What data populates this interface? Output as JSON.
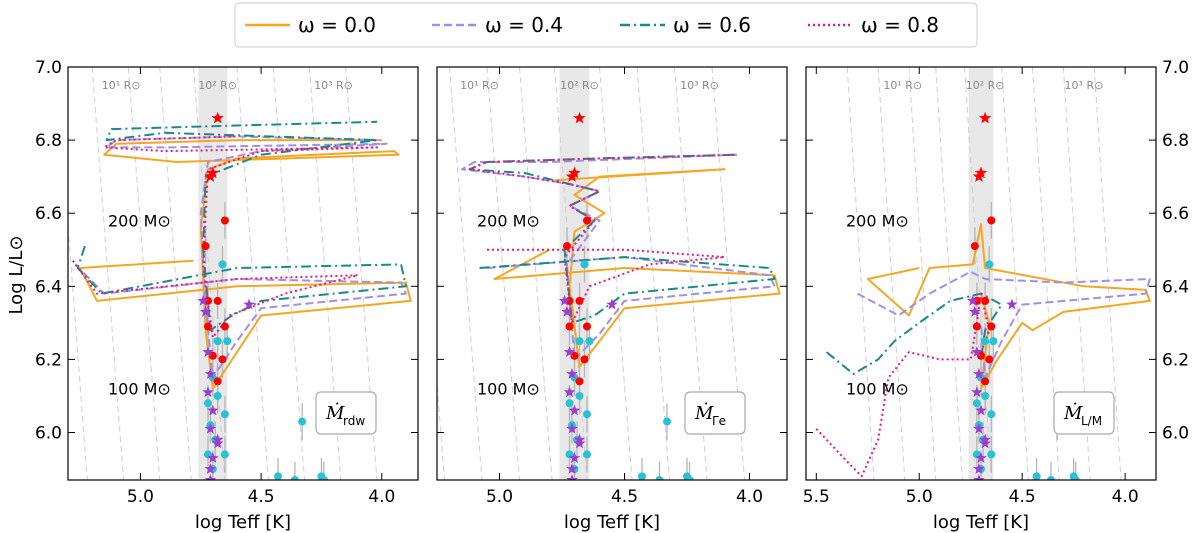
{
  "legend": {
    "items": [
      {
        "label": "ω = 0.0",
        "color": "#f5a623",
        "dash": "solid"
      },
      {
        "label": "ω = 0.4",
        "color": "#9f8fe8",
        "dash": "dashed"
      },
      {
        "label": "ω = 0.6",
        "color": "#1a8a85",
        "dash": "dashdot"
      },
      {
        "label": "ω = 0.8",
        "color": "#e8197c",
        "dash": "dotted"
      }
    ]
  },
  "axes": {
    "ylabel": "Log L/L⊙",
    "xlabel": "log Teff [K]",
    "y_ticks": [
      "6.0",
      "6.2",
      "6.4",
      "6.6",
      "6.8",
      "7.0"
    ],
    "mass_labels": [
      "200 M⊙",
      "100 M⊙"
    ],
    "radius_labels": [
      "10¹ R⊙",
      "10² R⊙",
      "10³ R⊙"
    ]
  },
  "colors": {
    "obs_red": "#ff0000",
    "obs_cyan": "#27c2d4",
    "obs_purple": "#9b3fd1",
    "grey_band": "#e8e8e8"
  },
  "chart_data": [
    {
      "type": "line",
      "panel": "Ṁ rdw",
      "badge": {
        "main": "Ṁ",
        "sub": "rdw"
      },
      "xlim": [
        5.3,
        3.85
      ],
      "ylim": [
        5.87,
        7.0
      ],
      "x_ticks": [
        "5.0",
        "4.5",
        "4.0"
      ],
      "series": [
        {
          "name": "ω = 0.0",
          "points": [
            [
              4.78,
              6.47
            ],
            [
              5.25,
              6.45
            ],
            [
              5.18,
              6.36
            ],
            [
              4.6,
              6.4
            ],
            [
              3.9,
              6.41
            ],
            [
              3.88,
              6.36
            ],
            [
              4.5,
              6.32
            ],
            [
              4.6,
              6.22
            ],
            [
              4.7,
              6.12
            ],
            [
              4.73,
              6.28
            ],
            [
              4.75,
              6.56
            ],
            [
              4.72,
              6.72
            ],
            [
              4.6,
              6.75
            ],
            [
              3.95,
              6.77
            ],
            [
              3.93,
              6.76
            ],
            [
              4.85,
              6.74
            ],
            [
              5.15,
              6.76
            ],
            [
              5.1,
              6.79
            ],
            [
              4.6,
              6.8
            ],
            [
              4.0,
              6.8
            ]
          ]
        },
        {
          "name": "ω = 0.4",
          "points": [
            [
              5.27,
              6.46
            ],
            [
              5.15,
              6.38
            ],
            [
              4.6,
              6.42
            ],
            [
              3.92,
              6.41
            ],
            [
              3.9,
              6.38
            ],
            [
              4.5,
              6.34
            ],
            [
              4.6,
              6.25
            ],
            [
              4.7,
              6.15
            ],
            [
              4.73,
              6.35
            ],
            [
              4.75,
              6.6
            ],
            [
              4.72,
              6.74
            ],
            [
              4.5,
              6.77
            ],
            [
              3.98,
              6.79
            ],
            [
              4.9,
              6.78
            ],
            [
              5.14,
              6.78
            ],
            [
              5.1,
              6.8
            ],
            [
              4.6,
              6.81
            ],
            [
              4.02,
              6.8
            ]
          ]
        },
        {
          "name": "ω = 0.6",
          "points": [
            [
              5.23,
              6.51
            ],
            [
              5.26,
              6.45
            ],
            [
              5.16,
              6.38
            ],
            [
              4.6,
              6.45
            ],
            [
              3.92,
              6.46
            ],
            [
              3.9,
              6.4
            ],
            [
              4.5,
              6.36
            ],
            [
              4.62,
              6.32
            ],
            [
              4.71,
              6.28
            ],
            [
              4.74,
              6.5
            ],
            [
              4.73,
              6.7
            ],
            [
              4.5,
              6.76
            ],
            [
              4.02,
              6.8
            ],
            [
              4.9,
              6.82
            ],
            [
              5.14,
              6.8
            ],
            [
              5.12,
              6.83
            ],
            [
              4.6,
              6.84
            ],
            [
              4.02,
              6.85
            ]
          ]
        },
        {
          "name": "ω = 0.8",
          "points": [
            [
              5.28,
              6.47
            ],
            [
              5.18,
              6.38
            ],
            [
              4.6,
              6.42
            ],
            [
              4.1,
              6.43
            ],
            [
              4.4,
              6.38
            ],
            [
              4.63,
              6.32
            ],
            [
              4.7,
              6.26
            ],
            [
              4.74,
              6.45
            ],
            [
              4.73,
              6.6
            ],
            [
              4.72,
              6.72
            ],
            [
              4.5,
              6.77
            ],
            [
              4.02,
              6.78
            ],
            [
              4.9,
              6.77
            ],
            [
              5.15,
              6.78
            ],
            [
              5.1,
              6.8
            ],
            [
              4.6,
              6.81
            ]
          ]
        }
      ]
    },
    {
      "type": "line",
      "panel": "Ṁ Γe",
      "badge": {
        "main": "Ṁ",
        "sub": "Γe"
      },
      "xlim": [
        5.25,
        3.85
      ],
      "ylim": [
        5.87,
        7.0
      ],
      "x_ticks": [
        "5.0",
        "4.5",
        "4.0"
      ],
      "series": [
        {
          "name": "ω = 0.0",
          "points": [
            [
              4.8,
              6.5
            ],
            [
              5.02,
              6.42
            ],
            [
              4.5,
              6.45
            ],
            [
              3.9,
              6.43
            ],
            [
              3.88,
              6.38
            ],
            [
              4.5,
              6.34
            ],
            [
              4.6,
              6.25
            ],
            [
              4.68,
              6.18
            ],
            [
              4.72,
              6.4
            ],
            [
              4.7,
              6.55
            ],
            [
              4.58,
              6.6
            ],
            [
              4.7,
              6.65
            ],
            [
              4.6,
              6.7
            ],
            [
              4.1,
              6.72
            ],
            [
              4.78,
              6.69
            ]
          ]
        },
        {
          "name": "ω = 0.4",
          "points": [
            [
              5.05,
              6.45
            ],
            [
              4.5,
              6.48
            ],
            [
              3.92,
              6.43
            ],
            [
              3.9,
              6.4
            ],
            [
              4.5,
              6.36
            ],
            [
              4.6,
              6.27
            ],
            [
              4.7,
              6.2
            ],
            [
              4.73,
              6.46
            ],
            [
              4.6,
              6.58
            ],
            [
              4.72,
              6.62
            ],
            [
              4.6,
              6.66
            ],
            [
              4.72,
              6.68
            ],
            [
              4.9,
              6.7
            ],
            [
              5.15,
              6.72
            ],
            [
              5.1,
              6.74
            ],
            [
              4.8,
              6.74
            ],
            [
              4.05,
              6.76
            ]
          ]
        },
        {
          "name": "ω = 0.6",
          "points": [
            [
              5.08,
              6.45
            ],
            [
              4.5,
              6.48
            ],
            [
              3.92,
              6.45
            ],
            [
              3.9,
              6.42
            ],
            [
              4.5,
              6.38
            ],
            [
              4.62,
              6.32
            ],
            [
              4.71,
              6.3
            ],
            [
              4.74,
              6.5
            ],
            [
              4.62,
              6.58
            ],
            [
              4.72,
              6.62
            ],
            [
              4.6,
              6.66
            ],
            [
              4.72,
              6.68
            ],
            [
              4.9,
              6.71
            ],
            [
              5.12,
              6.72
            ],
            [
              5.05,
              6.74
            ],
            [
              4.6,
              6.75
            ],
            [
              4.05,
              6.76
            ]
          ]
        },
        {
          "name": "ω = 0.8",
          "points": [
            [
              5.05,
              6.5
            ],
            [
              4.5,
              6.5
            ],
            [
              4.1,
              6.48
            ],
            [
              4.4,
              6.46
            ],
            [
              4.64,
              6.4
            ],
            [
              4.71,
              6.3
            ],
            [
              4.74,
              6.48
            ],
            [
              4.62,
              6.58
            ],
            [
              4.72,
              6.62
            ],
            [
              4.6,
              6.66
            ],
            [
              4.72,
              6.68
            ],
            [
              4.9,
              6.7
            ],
            [
              5.12,
              6.72
            ],
            [
              5.05,
              6.74
            ],
            [
              4.6,
              6.75
            ],
            [
              4.05,
              6.76
            ]
          ]
        }
      ]
    },
    {
      "type": "line",
      "panel": "Ṁ L/M",
      "badge": {
        "main": "Ṁ",
        "sub": "L/M"
      },
      "xlim": [
        5.55,
        3.85
      ],
      "ylim": [
        5.87,
        7.0
      ],
      "x_ticks": [
        "5.5",
        "5.0",
        "4.5",
        "4.0"
      ],
      "series": [
        {
          "name": "ω = 0.0",
          "points": [
            [
              5.0,
              6.45
            ],
            [
              5.25,
              6.42
            ],
            [
              5.05,
              6.32
            ],
            [
              4.95,
              6.45
            ],
            [
              4.74,
              6.46
            ],
            [
              4.7,
              6.57
            ],
            [
              4.68,
              6.45
            ],
            [
              4.2,
              6.4
            ],
            [
              3.9,
              6.39
            ],
            [
              3.88,
              6.36
            ],
            [
              4.3,
              6.33
            ],
            [
              4.45,
              6.28
            ],
            [
              4.5,
              6.3
            ],
            [
              4.62,
              6.2
            ],
            [
              4.7,
              6.12
            ],
            [
              4.66,
              6.3
            ],
            [
              4.7,
              6.38
            ]
          ]
        },
        {
          "name": "ω = 0.4",
          "points": [
            [
              5.3,
              6.38
            ],
            [
              5.1,
              6.32
            ],
            [
              4.95,
              6.38
            ],
            [
              4.75,
              6.44
            ],
            [
              4.68,
              6.42
            ],
            [
              4.3,
              6.41
            ],
            [
              3.88,
              6.42
            ],
            [
              3.9,
              6.38
            ],
            [
              4.5,
              6.35
            ],
            [
              4.6,
              6.25
            ],
            [
              4.68,
              6.15
            ],
            [
              4.7,
              6.3
            ]
          ]
        },
        {
          "name": "ω = 0.6",
          "points": [
            [
              5.45,
              6.22
            ],
            [
              5.32,
              6.16
            ],
            [
              5.2,
              6.2
            ],
            [
              5.12,
              6.25
            ],
            [
              5.0,
              6.3
            ],
            [
              4.85,
              6.36
            ],
            [
              4.7,
              6.38
            ],
            [
              4.6,
              6.35
            ],
            [
              4.68,
              6.28
            ],
            [
              4.7,
              6.2
            ]
          ]
        },
        {
          "name": "ω = 0.8",
          "points": [
            [
              5.5,
              6.01
            ],
            [
              5.35,
              5.92
            ],
            [
              5.28,
              5.88
            ],
            [
              5.2,
              5.98
            ],
            [
              5.15,
              6.15
            ],
            [
              5.05,
              6.22
            ],
            [
              4.9,
              6.2
            ],
            [
              4.75,
              6.2
            ],
            [
              4.72,
              6.3
            ],
            [
              4.7,
              6.38
            ],
            [
              4.66,
              6.28
            ],
            [
              4.7,
              6.22
            ]
          ]
        }
      ]
    }
  ],
  "observations": {
    "red_stars": [
      [
        4.68,
        6.86
      ],
      [
        4.7,
        6.71
      ],
      [
        4.71,
        6.7
      ]
    ],
    "red_dots": [
      [
        4.73,
        6.51
      ],
      [
        4.65,
        6.58
      ],
      [
        4.72,
        6.36
      ],
      [
        4.68,
        6.36
      ],
      [
        4.72,
        6.29
      ],
      [
        4.7,
        6.21
      ],
      [
        4.66,
        6.2
      ],
      [
        4.68,
        6.14
      ],
      [
        4.65,
        6.29
      ]
    ],
    "cyan_dots": [
      [
        4.66,
        6.46
      ],
      [
        4.7,
        6.15
      ],
      [
        4.68,
        6.1
      ],
      [
        4.65,
        6.05
      ],
      [
        4.71,
        6.02
      ],
      [
        4.69,
        5.98
      ],
      [
        4.72,
        5.94
      ],
      [
        4.65,
        5.94
      ],
      [
        4.7,
        5.9
      ],
      [
        4.33,
        6.03
      ],
      [
        4.25,
        5.88
      ],
      [
        4.24,
        5.87
      ],
      [
        4.36,
        5.87
      ],
      [
        4.43,
        5.88
      ],
      [
        4.72,
        6.08
      ],
      [
        4.68,
        6.25
      ],
      [
        4.64,
        6.25
      ]
    ],
    "purple_stars": [
      [
        4.74,
        6.36
      ],
      [
        4.55,
        6.35
      ],
      [
        4.73,
        6.33
      ],
      [
        4.72,
        6.22
      ],
      [
        4.71,
        6.16
      ],
      [
        4.72,
        6.11
      ],
      [
        4.7,
        6.06
      ],
      [
        4.71,
        6.01
      ],
      [
        4.68,
        5.97
      ],
      [
        4.7,
        5.93
      ],
      [
        4.71,
        5.9
      ],
      [
        4.71,
        5.87
      ],
      [
        4.68,
        5.98
      ]
    ]
  }
}
